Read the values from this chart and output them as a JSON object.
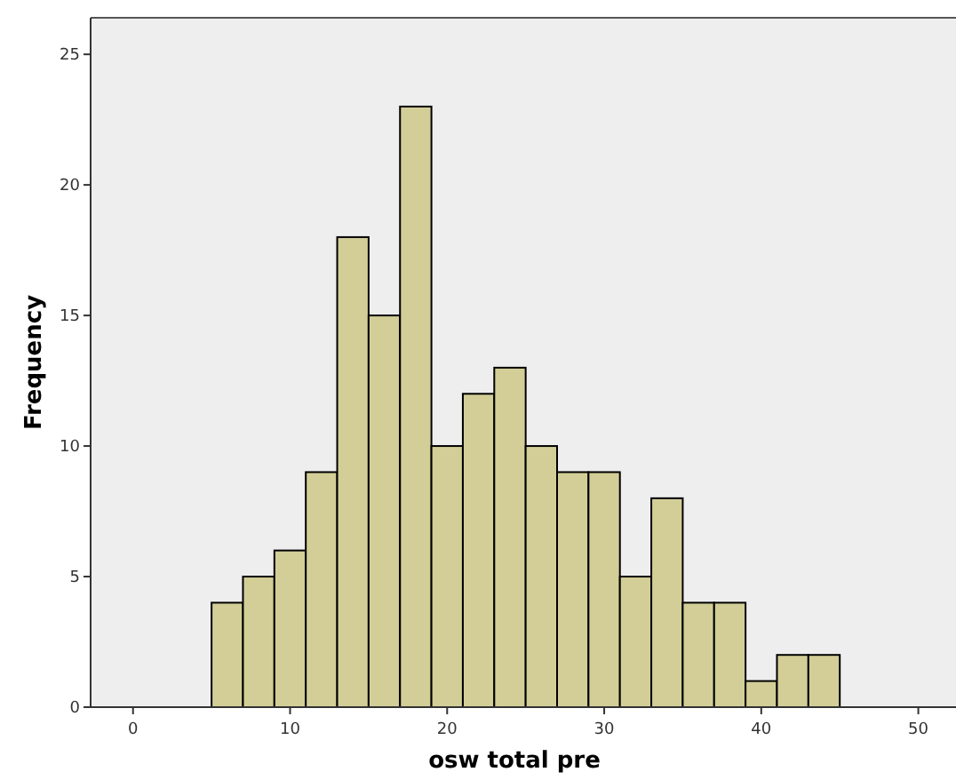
{
  "chart_data": {
    "type": "histogram",
    "xlabel": "osw total pre",
    "ylabel": "Frequency",
    "bins": [
      5,
      7,
      9,
      11,
      13,
      15,
      17,
      19,
      21,
      23,
      25,
      27,
      29,
      31,
      33,
      35,
      37,
      39,
      41,
      43,
      45
    ],
    "values": [
      4,
      5,
      6,
      9,
      18,
      15,
      23,
      10,
      12,
      13,
      10,
      9,
      9,
      5,
      8,
      4,
      4,
      1,
      2,
      2
    ],
    "color": "#d3ce97",
    "xlim": [
      -2.7,
      52.4
    ],
    "ylim": [
      0,
      26.4
    ],
    "xticks": [
      0,
      10,
      20,
      30,
      40,
      50
    ],
    "yticks": [
      0,
      5,
      10,
      15,
      20,
      25
    ],
    "grid": false
  }
}
